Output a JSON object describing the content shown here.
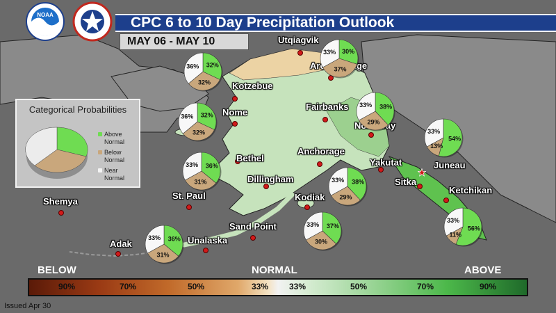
{
  "title": "CPC 6 to 10 Day Precipitation Outlook",
  "date_range": "MAY 06 - MAY 10",
  "issued": "Issued Apr 30",
  "logos": {
    "noaa": "NOAA",
    "nws": "NATIONAL WEATHER SERVICE"
  },
  "legend": {
    "title": "Categorical Probabilities",
    "items": [
      {
        "label1": "Above",
        "label2": "Normal",
        "color": "#6fdc52"
      },
      {
        "label1": "Below",
        "label2": "Normal",
        "color": "#c9a77c"
      },
      {
        "label1": "Near",
        "label2": "Normal",
        "color": "#f4f4f4"
      }
    ]
  },
  "scale": {
    "below_label": "BELOW",
    "normal_label": "NORMAL",
    "above_label": "ABOVE",
    "ticks": [
      "90%",
      "70%",
      "50%",
      "33%",
      "33%",
      "50%",
      "70%",
      "90%"
    ]
  },
  "places": [
    {
      "name": "Utqiagvik"
    },
    {
      "name": "Arctic Village"
    },
    {
      "name": "Kotzebue"
    },
    {
      "name": "Nome"
    },
    {
      "name": "Fairbanks"
    },
    {
      "name": "Northway"
    },
    {
      "name": "Bethel"
    },
    {
      "name": "Anchorage"
    },
    {
      "name": "Dillingham"
    },
    {
      "name": "Yakutat"
    },
    {
      "name": "Juneau"
    },
    {
      "name": "Sitka"
    },
    {
      "name": "Ketchikan"
    },
    {
      "name": "St. Paul"
    },
    {
      "name": "Kodiak"
    },
    {
      "name": "Shemya"
    },
    {
      "name": "Sand Point"
    },
    {
      "name": "Unalaska"
    },
    {
      "name": "Adak"
    }
  ],
  "pies": [
    {
      "near": "33%",
      "above": "30%",
      "below": "37%"
    },
    {
      "near": "36%",
      "above": "32%",
      "below": "32%"
    },
    {
      "near": "36%",
      "above": "32%",
      "below": "32%"
    },
    {
      "near": "33%",
      "above": "38%",
      "below": "29%"
    },
    {
      "near": "33%",
      "above": "54%",
      "below": "13%"
    },
    {
      "near": "33%",
      "above": "36%",
      "below": "31%"
    },
    {
      "near": "33%",
      "above": "38%",
      "below": "29%"
    },
    {
      "near": "33%",
      "above": "56%",
      "below": "11%"
    },
    {
      "near": "33%",
      "above": "37%",
      "below": "30%"
    },
    {
      "near": "33%",
      "above": "36%",
      "below": "31%"
    }
  ],
  "colors": {
    "above": "#6fdc52",
    "below": "#c9a77c",
    "near": "#f8f8f8",
    "above_region_light": "#bfe0b6",
    "above_region_mid": "#9cd08f",
    "below_region": "#ecd3a4",
    "title_bar": "#1d3f8c"
  }
}
